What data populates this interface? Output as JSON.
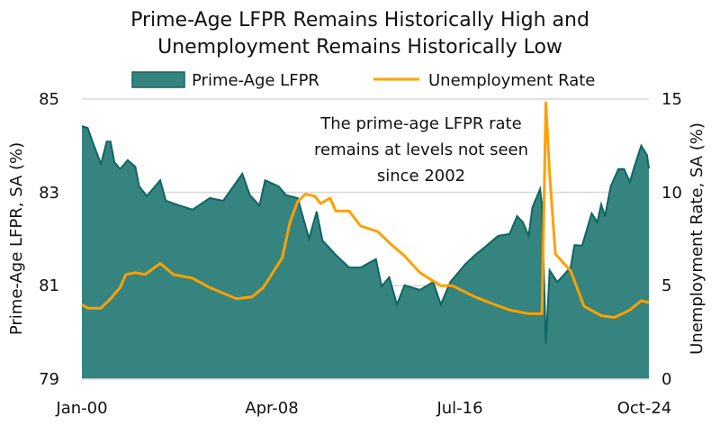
{
  "chart_data": {
    "type": "area+line",
    "title": [
      "Prime-Age LFPR Remains Historically High and",
      "Unemployment Remains Historically Low"
    ],
    "legend": {
      "placement": "top",
      "entries": [
        "Prime-Age LFPR",
        "Unemployment Rate"
      ]
    },
    "x_tick_labels": [
      "Jan-00",
      "Apr-08",
      "Jul-16",
      "Oct-24"
    ],
    "x_tick_dates": [
      "2000-01",
      "2008-04",
      "2016-07",
      "2024-10"
    ],
    "xlim": [
      "2000-01",
      "2024-10"
    ],
    "y_left": {
      "label": "Prime-Age LFPR, SA (%)",
      "lim": [
        79,
        85
      ],
      "ticks": [
        "85",
        "83",
        "81",
        "79"
      ]
    },
    "y_right": {
      "label": "Unemployment Rate, SA (%)",
      "lim": [
        0,
        15
      ],
      "ticks": [
        "15",
        "10",
        "5",
        "0"
      ]
    },
    "grid": true,
    "annotation": [
      "The prime-age LFPR rate",
      "remains at levels not seen",
      "since 2002"
    ],
    "colors": {
      "lfpr_fill": "#358480",
      "lfpr_line": "#0f6561",
      "unemployment": "#FFA000",
      "grid": "#d9d9d9"
    },
    "series": [
      {
        "name": "Prime-Age LFPR",
        "axis": "left",
        "type": "area",
        "points": [
          [
            "2000-01",
            84.42
          ],
          [
            "2000-04",
            84.38
          ],
          [
            "2000-07",
            84.04
          ],
          [
            "2000-11",
            83.61
          ],
          [
            "2001-02",
            84.09
          ],
          [
            "2001-04",
            84.09
          ],
          [
            "2001-06",
            83.65
          ],
          [
            "2001-09",
            83.5
          ],
          [
            "2002-01",
            83.69
          ],
          [
            "2002-05",
            83.55
          ],
          [
            "2002-07",
            83.13
          ],
          [
            "2002-11",
            82.92
          ],
          [
            "2003-06",
            83.26
          ],
          [
            "2003-09",
            82.82
          ],
          [
            "2004-04",
            82.72
          ],
          [
            "2004-11",
            82.63
          ],
          [
            "2005-08",
            82.88
          ],
          [
            "2006-03",
            82.82
          ],
          [
            "2007-01",
            83.4
          ],
          [
            "2007-05",
            82.94
          ],
          [
            "2007-10",
            82.72
          ],
          [
            "2008-01",
            83.26
          ],
          [
            "2008-08",
            83.13
          ],
          [
            "2008-12",
            82.94
          ],
          [
            "2009-06",
            82.88
          ],
          [
            "2009-12",
            82.01
          ],
          [
            "2010-04",
            82.59
          ],
          [
            "2010-07",
            81.97
          ],
          [
            "2011-02",
            81.66
          ],
          [
            "2011-09",
            81.39
          ],
          [
            "2012-03",
            81.39
          ],
          [
            "2012-11",
            81.57
          ],
          [
            "2013-02",
            80.99
          ],
          [
            "2013-06",
            81.18
          ],
          [
            "2013-10",
            80.6
          ],
          [
            "2014-02",
            81.01
          ],
          [
            "2014-10",
            80.91
          ],
          [
            "2015-05",
            81.08
          ],
          [
            "2015-09",
            80.6
          ],
          [
            "2016-02",
            81.08
          ],
          [
            "2016-10",
            81.47
          ],
          [
            "2017-03",
            81.66
          ],
          [
            "2017-09",
            81.86
          ],
          [
            "2018-03",
            82.07
          ],
          [
            "2018-09",
            82.11
          ],
          [
            "2019-01",
            82.49
          ],
          [
            "2019-04",
            82.36
          ],
          [
            "2019-07",
            82.07
          ],
          [
            "2019-09",
            82.68
          ],
          [
            "2020-01",
            83.07
          ],
          [
            "2020-02",
            82.74
          ],
          [
            "2020-04",
            79.75
          ],
          [
            "2020-06",
            81.33
          ],
          [
            "2020-10",
            81.08
          ],
          [
            "2021-05",
            81.39
          ],
          [
            "2021-07",
            81.87
          ],
          [
            "2021-11",
            81.86
          ],
          [
            "2022-04",
            82.55
          ],
          [
            "2022-07",
            82.36
          ],
          [
            "2022-09",
            82.74
          ],
          [
            "2022-11",
            82.49
          ],
          [
            "2023-02",
            83.13
          ],
          [
            "2023-06",
            83.5
          ],
          [
            "2023-09",
            83.5
          ],
          [
            "2023-12",
            83.22
          ],
          [
            "2024-02",
            83.5
          ],
          [
            "2024-06",
            84.0
          ],
          [
            "2024-09",
            83.8
          ],
          [
            "2024-10",
            83.51
          ]
        ]
      },
      {
        "name": "Unemployment Rate",
        "axis": "right",
        "type": "line",
        "points": [
          [
            "2000-01",
            4.0
          ],
          [
            "2000-04",
            3.8
          ],
          [
            "2000-11",
            3.8
          ],
          [
            "2001-04",
            4.3
          ],
          [
            "2001-09",
            4.9
          ],
          [
            "2001-12",
            5.6
          ],
          [
            "2002-05",
            5.7
          ],
          [
            "2002-10",
            5.6
          ],
          [
            "2003-06",
            6.2
          ],
          [
            "2004-01",
            5.6
          ],
          [
            "2004-11",
            5.4
          ],
          [
            "2005-08",
            4.9
          ],
          [
            "2006-03",
            4.6
          ],
          [
            "2006-10",
            4.3
          ],
          [
            "2007-06",
            4.4
          ],
          [
            "2007-12",
            4.9
          ],
          [
            "2008-05",
            5.7
          ],
          [
            "2008-10",
            6.5
          ],
          [
            "2009-02",
            8.4
          ],
          [
            "2009-06",
            9.5
          ],
          [
            "2009-10",
            9.9
          ],
          [
            "2010-03",
            9.8
          ],
          [
            "2010-06",
            9.4
          ],
          [
            "2010-11",
            9.7
          ],
          [
            "2011-02",
            9.0
          ],
          [
            "2011-09",
            9.0
          ],
          [
            "2012-03",
            8.2
          ],
          [
            "2012-12",
            7.9
          ],
          [
            "2013-06",
            7.3
          ],
          [
            "2014-02",
            6.6
          ],
          [
            "2014-10",
            5.7
          ],
          [
            "2015-09",
            5.0
          ],
          [
            "2016-03",
            5.0
          ],
          [
            "2017-03",
            4.4
          ],
          [
            "2018-01",
            4.0
          ],
          [
            "2018-09",
            3.7
          ],
          [
            "2019-07",
            3.5
          ],
          [
            "2020-02",
            3.5
          ],
          [
            "2020-04",
            14.8
          ],
          [
            "2020-06",
            11.0
          ],
          [
            "2020-09",
            6.7
          ],
          [
            "2021-05",
            5.8
          ],
          [
            "2021-12",
            3.9
          ],
          [
            "2022-09",
            3.4
          ],
          [
            "2023-04",
            3.3
          ],
          [
            "2023-12",
            3.7
          ],
          [
            "2024-06",
            4.2
          ],
          [
            "2024-10",
            4.1
          ]
        ]
      }
    ]
  }
}
